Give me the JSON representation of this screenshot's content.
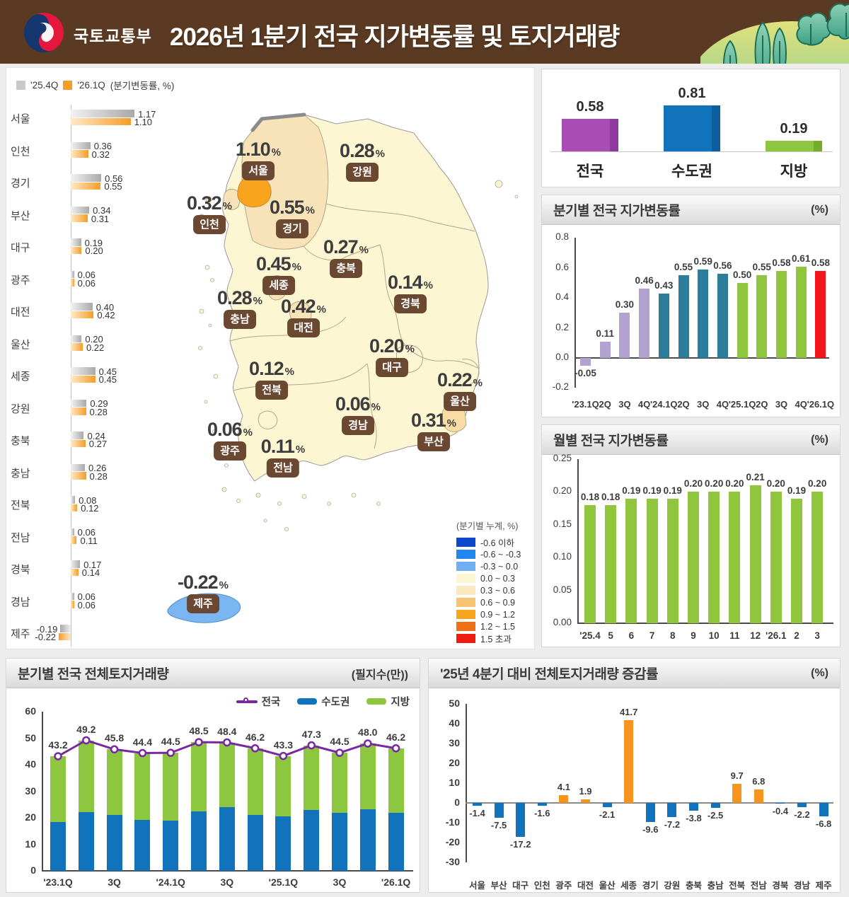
{
  "header": {
    "agency": "국토교통부",
    "title": "2026년 1분기 전국 지가변동률 및 토지거래량"
  },
  "map": {
    "legend_title": "(분기별 누계, %)",
    "legend": [
      {
        "label": "-0.6 이하",
        "color": "#0c47cc"
      },
      {
        "label": "-0.6 ~ -0.3",
        "color": "#2186f0"
      },
      {
        "label": "-0.3 ~ 0.0",
        "color": "#6fb0f4"
      },
      {
        "label": "0.0 ~ 0.3",
        "color": "#fcf6d2"
      },
      {
        "label": "0.3 ~ 0.6",
        "color": "#fbe8bf"
      },
      {
        "label": "0.6 ~ 0.9",
        "color": "#f6c472"
      },
      {
        "label": "0.9 ~ 1.2",
        "color": "#f9a41d"
      },
      {
        "label": "1.2 ~ 1.5",
        "color": "#ef7019"
      },
      {
        "label": "1.5 초과",
        "color": "#ee1b10"
      }
    ],
    "regions": [
      {
        "name": "서울",
        "value": "1.10"
      },
      {
        "name": "강원",
        "value": "0.28"
      },
      {
        "name": "인천",
        "value": "0.32"
      },
      {
        "name": "경기",
        "value": "0.55"
      },
      {
        "name": "충북",
        "value": "0.27"
      },
      {
        "name": "세종",
        "value": "0.45"
      },
      {
        "name": "경북",
        "value": "0.14"
      },
      {
        "name": "충남",
        "value": "0.28"
      },
      {
        "name": "대전",
        "value": "0.42"
      },
      {
        "name": "대구",
        "value": "0.20"
      },
      {
        "name": "전북",
        "value": "0.12"
      },
      {
        "name": "울산",
        "value": "0.22"
      },
      {
        "name": "경남",
        "value": "0.06"
      },
      {
        "name": "부산",
        "value": "0.31"
      },
      {
        "name": "광주",
        "value": "0.06"
      },
      {
        "name": "전남",
        "value": "0.11"
      },
      {
        "name": "제주",
        "value": "-0.22"
      }
    ]
  },
  "chart_data": {
    "region_compare": {
      "type": "bar",
      "legend": {
        "s1": "'25.4Q",
        "s2": "'26.1Q",
        "note": "(분기변동률, %)"
      },
      "colors": {
        "s1": "#c9c9c9",
        "s2": "#f59d28"
      },
      "rows": [
        {
          "region": "서울",
          "q4": 1.17,
          "q1": 1.1
        },
        {
          "region": "인천",
          "q4": 0.36,
          "q1": 0.32
        },
        {
          "region": "경기",
          "q4": 0.56,
          "q1": 0.55
        },
        {
          "region": "부산",
          "q4": 0.34,
          "q1": 0.31
        },
        {
          "region": "대구",
          "q4": 0.19,
          "q1": 0.2
        },
        {
          "region": "광주",
          "q4": 0.06,
          "q1": 0.06
        },
        {
          "region": "대전",
          "q4": 0.4,
          "q1": 0.42
        },
        {
          "region": "울산",
          "q4": 0.2,
          "q1": 0.22
        },
        {
          "region": "세종",
          "q4": 0.45,
          "q1": 0.45
        },
        {
          "region": "강원",
          "q4": 0.29,
          "q1": 0.28
        },
        {
          "region": "충북",
          "q4": 0.24,
          "q1": 0.27
        },
        {
          "region": "충남",
          "q4": 0.26,
          "q1": 0.28
        },
        {
          "region": "전북",
          "q4": 0.08,
          "q1": 0.12
        },
        {
          "region": "전남",
          "q4": 0.06,
          "q1": 0.11
        },
        {
          "region": "경북",
          "q4": 0.17,
          "q1": 0.14
        },
        {
          "region": "경남",
          "q4": 0.06,
          "q1": 0.06
        },
        {
          "region": "제주",
          "q4": -0.19,
          "q1": -0.22
        }
      ]
    },
    "summary": {
      "type": "bar",
      "items": [
        {
          "label": "전국",
          "value": 0.58,
          "color": "#a94cb4",
          "edge": "#8c3a9c"
        },
        {
          "label": "수도권",
          "value": 0.81,
          "color": "#1273bd",
          "edge": "#0d5e9e"
        },
        {
          "label": "지방",
          "value": 0.19,
          "color": "#8dc63f",
          "edge": "#74ad2c"
        }
      ]
    },
    "quarterly": {
      "type": "bar",
      "title": "분기별 전국 지가변동률",
      "unit": "(%)",
      "ylim": [
        -0.2,
        0.8
      ],
      "yticks": [
        "0.8",
        "0.6",
        "0.4",
        "0.2",
        "0.0",
        "-0.2"
      ],
      "categories": [
        "'23.1Q",
        "2Q",
        "3Q",
        "4Q",
        "'24.1Q",
        "2Q",
        "3Q",
        "4Q",
        "'25.1Q",
        "2Q",
        "3Q",
        "4Q",
        "'26.1Q"
      ],
      "values": [
        -0.05,
        0.11,
        0.3,
        0.46,
        0.43,
        0.55,
        0.59,
        0.56,
        0.5,
        0.55,
        0.58,
        0.61,
        0.58
      ],
      "colors": [
        "#b2a2cf",
        "#b2a2cf",
        "#b2a2cf",
        "#b2a2cf",
        "#2b7d99",
        "#2b7d99",
        "#2b7d99",
        "#2b7d99",
        "#8fc63d",
        "#8fc63d",
        "#8fc63d",
        "#8fc63d",
        "#f2151c"
      ]
    },
    "monthly": {
      "type": "bar",
      "title": "월별 전국 지가변동률",
      "unit": "(%)",
      "ylim": [
        0,
        0.25
      ],
      "yticks": [
        "0.25",
        "0.20",
        "0.15",
        "0.10",
        "0.05",
        "0.00"
      ],
      "categories": [
        "'25.4",
        "5",
        "6",
        "7",
        "8",
        "9",
        "10",
        "11",
        "12",
        "'26.1",
        "2",
        "3"
      ],
      "values": [
        0.18,
        0.18,
        0.19,
        0.19,
        0.19,
        0.2,
        0.2,
        0.2,
        0.21,
        0.2,
        0.19,
        0.2
      ],
      "color": "#8fc63d"
    },
    "volume": {
      "type": "bar",
      "note": "stacked bars with total line",
      "title": "분기별 전국 전체토지거래량",
      "unit": "(필지수(만))",
      "legend": [
        "전국",
        "수도권",
        "지방"
      ],
      "colors": {
        "line": "#7a28a0",
        "sudogwon": "#1273bd",
        "jibang": "#8dc63f"
      },
      "ylim": [
        0,
        60
      ],
      "yticks": [
        "60",
        "50",
        "40",
        "30",
        "20",
        "10",
        "0"
      ],
      "axis_labels": [
        "'23.1Q",
        "",
        "3Q",
        "",
        "'24.1Q",
        "",
        "3Q",
        "",
        "'25.1Q",
        "",
        "3Q",
        "",
        "'26.1Q"
      ],
      "totals": [
        43.2,
        49.2,
        45.8,
        44.4,
        44.5,
        48.5,
        48.4,
        46.2,
        43.3,
        47.3,
        44.5,
        48.0,
        46.2
      ],
      "sudogwon": [
        18.5,
        22.2,
        21.0,
        19.3,
        19.0,
        22.4,
        24.0,
        21.0,
        20.6,
        23.0,
        22.0,
        23.3,
        21.8
      ],
      "jibang": [
        24.7,
        27.0,
        24.8,
        25.1,
        25.5,
        26.1,
        24.4,
        25.2,
        22.7,
        24.3,
        22.5,
        24.7,
        24.4
      ]
    },
    "change": {
      "type": "bar",
      "title": "'25년 4분기 대비 전체토지거래량 증감률",
      "unit": "(%)",
      "ylim": [
        -30,
        50
      ],
      "yticks": [
        "50",
        "40",
        "30",
        "20",
        "10",
        "0",
        "-10",
        "-20",
        "-30"
      ],
      "categories": [
        "서울",
        "부산",
        "대구",
        "인천",
        "광주",
        "대전",
        "울산",
        "세종",
        "경기",
        "강원",
        "충북",
        "충남",
        "전북",
        "전남",
        "경북",
        "경남",
        "제주"
      ],
      "values": [
        -1.4,
        -7.5,
        -17.2,
        -1.6,
        4.1,
        1.9,
        -2.1,
        41.7,
        -9.6,
        -7.2,
        -3.8,
        -2.5,
        9.7,
        6.8,
        -0.4,
        -2.2,
        -6.8
      ],
      "colors": {
        "positive": "#f7941e",
        "negative": "#1273bd"
      }
    }
  }
}
